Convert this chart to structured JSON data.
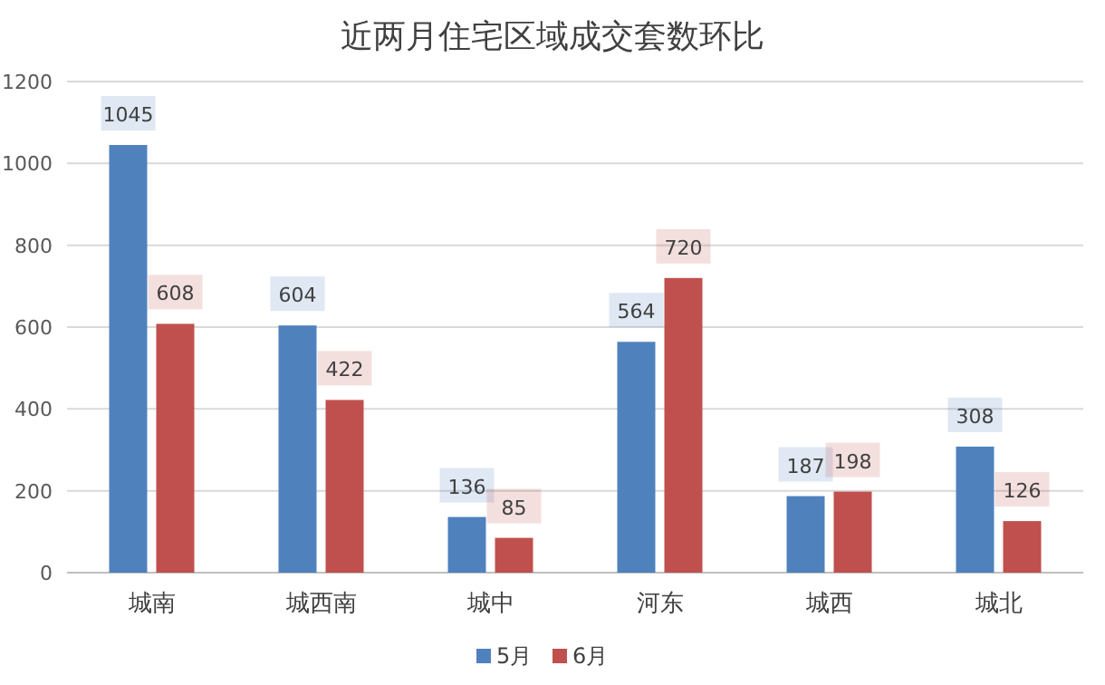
{
  "chart_data": {
    "type": "bar",
    "title": "近两月住宅区域成交套数环比",
    "categories": [
      "城南",
      "城西南",
      "城中",
      "河东",
      "城西",
      "城北"
    ],
    "series": [
      {
        "name": "5月",
        "color": "#4f81bd",
        "values": [
          1045,
          604,
          136,
          564,
          187,
          308
        ]
      },
      {
        "name": "6月",
        "color": "#c0504d",
        "values": [
          608,
          422,
          85,
          720,
          198,
          126
        ]
      }
    ],
    "ylim": [
      0,
      1200
    ],
    "yticks": [
      0,
      200,
      400,
      600,
      800,
      1000,
      1200
    ],
    "grid": "y",
    "legend": "bottom",
    "data_labels": true
  }
}
